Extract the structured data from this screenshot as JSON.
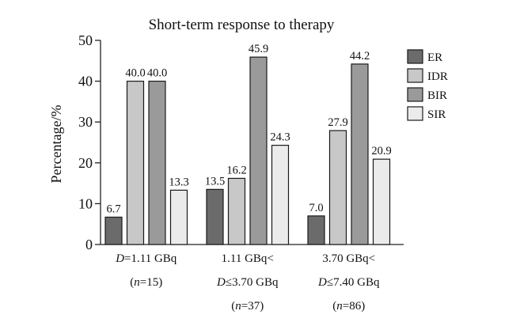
{
  "chart_data": {
    "type": "bar",
    "title": "Short-term response to therapy",
    "ylabel": "Percentage/%",
    "xlabel": "",
    "ylim": [
      0,
      50
    ],
    "yticks": [
      0,
      10,
      20,
      30,
      40,
      50
    ],
    "categories": [
      {
        "lines": [
          [
            {
              "t": "D",
              "i": true
            },
            {
              "t": "=1.11 GBq",
              "i": false
            }
          ],
          [
            {
              "t": "(",
              "i": false
            },
            {
              "t": "n",
              "i": true
            },
            {
              "t": "=15)",
              "i": false
            }
          ]
        ]
      },
      {
        "lines": [
          [
            {
              "t": "1.11 GBq<",
              "i": false
            }
          ],
          [
            {
              "t": "D",
              "i": true
            },
            {
              "t": "≤3.70 GBq",
              "i": false
            }
          ],
          [
            {
              "t": "(",
              "i": false
            },
            {
              "t": "n",
              "i": true
            },
            {
              "t": "=37)",
              "i": false
            }
          ]
        ]
      },
      {
        "lines": [
          [
            {
              "t": "3.70 GBq<",
              "i": false
            }
          ],
          [
            {
              "t": "D",
              "i": true
            },
            {
              "t": "≤7.40 GBq",
              "i": false
            }
          ],
          [
            {
              "t": "(",
              "i": false
            },
            {
              "t": "n",
              "i": true
            },
            {
              "t": "=86)",
              "i": false
            }
          ]
        ]
      }
    ],
    "series": [
      {
        "name": "ER",
        "color": "#6b6b6b",
        "values": [
          6.7,
          13.5,
          7.0
        ],
        "labels": [
          "6.7",
          "13.5",
          "7.0"
        ]
      },
      {
        "name": "IDR",
        "color": "#c8c8c8",
        "values": [
          40.0,
          16.2,
          27.9
        ],
        "labels": [
          "40.0",
          "16.2",
          "27.9"
        ]
      },
      {
        "name": "BIR",
        "color": "#9a9a9a",
        "values": [
          40.0,
          45.9,
          44.2
        ],
        "labels": [
          "40.0",
          "45.9",
          "44.2"
        ]
      },
      {
        "name": "SIR",
        "color": "#ebebeb",
        "values": [
          13.3,
          24.3,
          20.9
        ],
        "labels": [
          "13.3",
          "24.3",
          "20.9"
        ]
      }
    ],
    "legend_position": "top-right",
    "grid": false
  }
}
